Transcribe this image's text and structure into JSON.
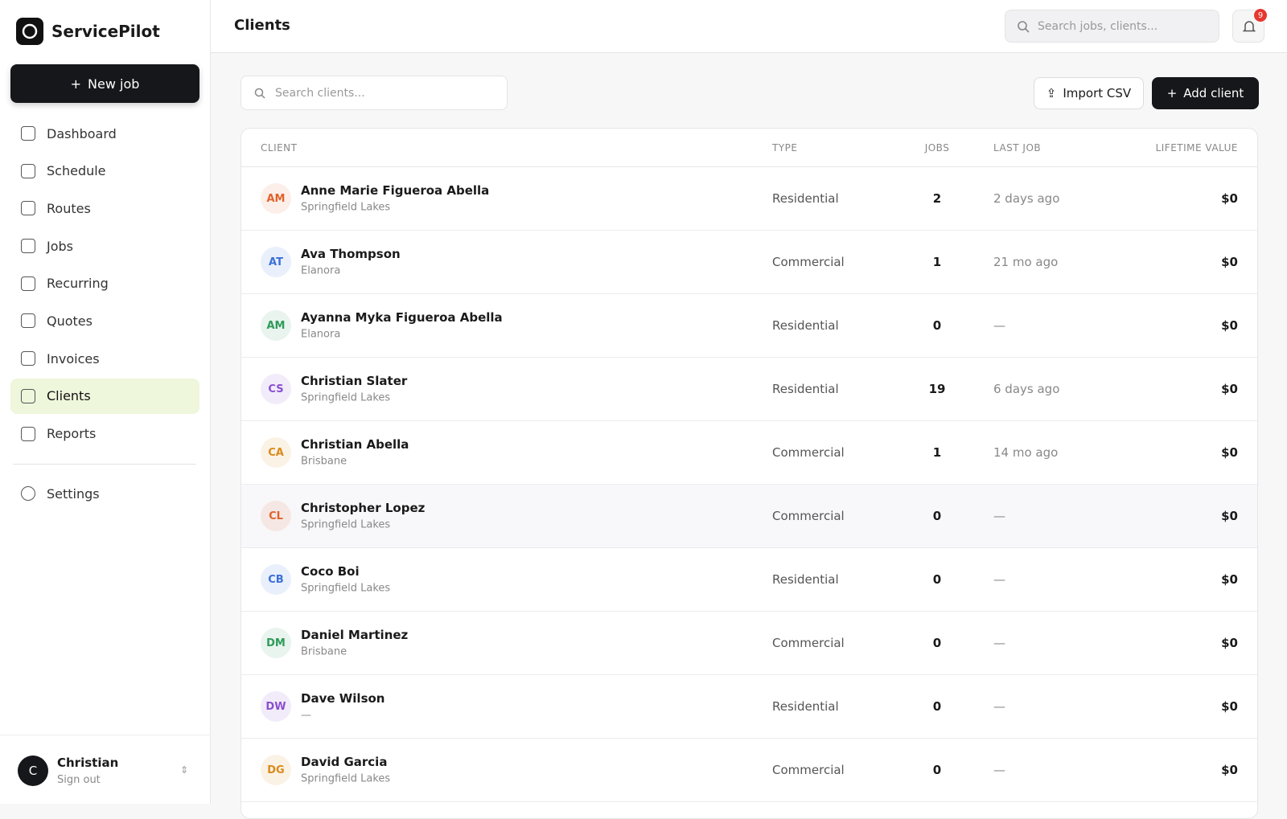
{
  "sidebar": {
    "brand": "ServicePilot",
    "new_job": "New job",
    "nav": [
      "Dashboard",
      "Schedule",
      "Routes",
      "Jobs",
      "Recurring",
      "Quotes",
      "Invoices",
      "Clients",
      "Reports"
    ],
    "active": "Clients",
    "settings": "Settings",
    "user": {
      "initial": "C",
      "name": "Christian",
      "action": "Sign out"
    }
  },
  "header": {
    "title": "Clients",
    "search_placeholder": "Search jobs, clients...",
    "notifications": "9"
  },
  "toolbar": {
    "search_placeholder": "Search clients...",
    "import": "Import CSV",
    "add": "Add client"
  },
  "table": {
    "columns": [
      "CLIENT",
      "TYPE",
      "JOBS",
      "LAST JOB",
      "LIFETIME VALUE"
    ],
    "rows": [
      {
        "initials": "AM",
        "avatar_color": "#e0622d",
        "name": "Anne Marie Figueroa Abella",
        "location": "Springfield Lakes",
        "type": "Residential",
        "jobs": 2,
        "last_job": "2 days ago",
        "value": "$0"
      },
      {
        "initials": "AT",
        "avatar_color": "#3b6fd8",
        "name": "Ava Thompson",
        "location": "Elanora",
        "type": "Commercial",
        "jobs": 1,
        "last_job": "21 mo ago",
        "value": "$0"
      },
      {
        "initials": "AM",
        "avatar_color": "#2f9a5a",
        "name": "Ayanna Myka Figueroa Abella",
        "location": "Elanora",
        "type": "Residential",
        "jobs": 0,
        "last_job": "—",
        "value": "$0"
      },
      {
        "initials": "CS",
        "avatar_color": "#8a4fcf",
        "name": "Christian Slater",
        "location": "Springfield Lakes",
        "type": "Residential",
        "jobs": 19,
        "last_job": "6 days ago",
        "value": "$0"
      },
      {
        "initials": "CA",
        "avatar_color": "#d98b1c",
        "name": "Christian Abella",
        "location": "Brisbane",
        "type": "Commercial",
        "jobs": 1,
        "last_job": "14 mo ago",
        "value": "$0"
      },
      {
        "initials": "CL",
        "avatar_color": "#e0622d",
        "name": "Christopher Lopez",
        "location": "Springfield Lakes",
        "type": "Commercial",
        "jobs": 0,
        "last_job": "—",
        "value": "$0"
      },
      {
        "initials": "CB",
        "avatar_color": "#3b6fd8",
        "name": "Coco Boi",
        "location": "Springfield Lakes",
        "type": "Residential",
        "jobs": 0,
        "last_job": "—",
        "value": "$0"
      },
      {
        "initials": "DM",
        "avatar_color": "#2f9a5a",
        "name": "Daniel Martinez",
        "location": "Brisbane",
        "type": "Commercial",
        "jobs": 0,
        "last_job": "—",
        "value": "$0"
      },
      {
        "initials": "DW",
        "avatar_color": "#8a4fcf",
        "name": "Dave Wilson",
        "location": "—",
        "type": "Residential",
        "jobs": 0,
        "last_job": "—",
        "value": "$0"
      },
      {
        "initials": "DG",
        "avatar_color": "#d98b1c",
        "name": "David Garcia",
        "location": "Springfield Lakes",
        "type": "Commercial",
        "jobs": 0,
        "last_job": "—",
        "value": "$0"
      }
    ]
  }
}
